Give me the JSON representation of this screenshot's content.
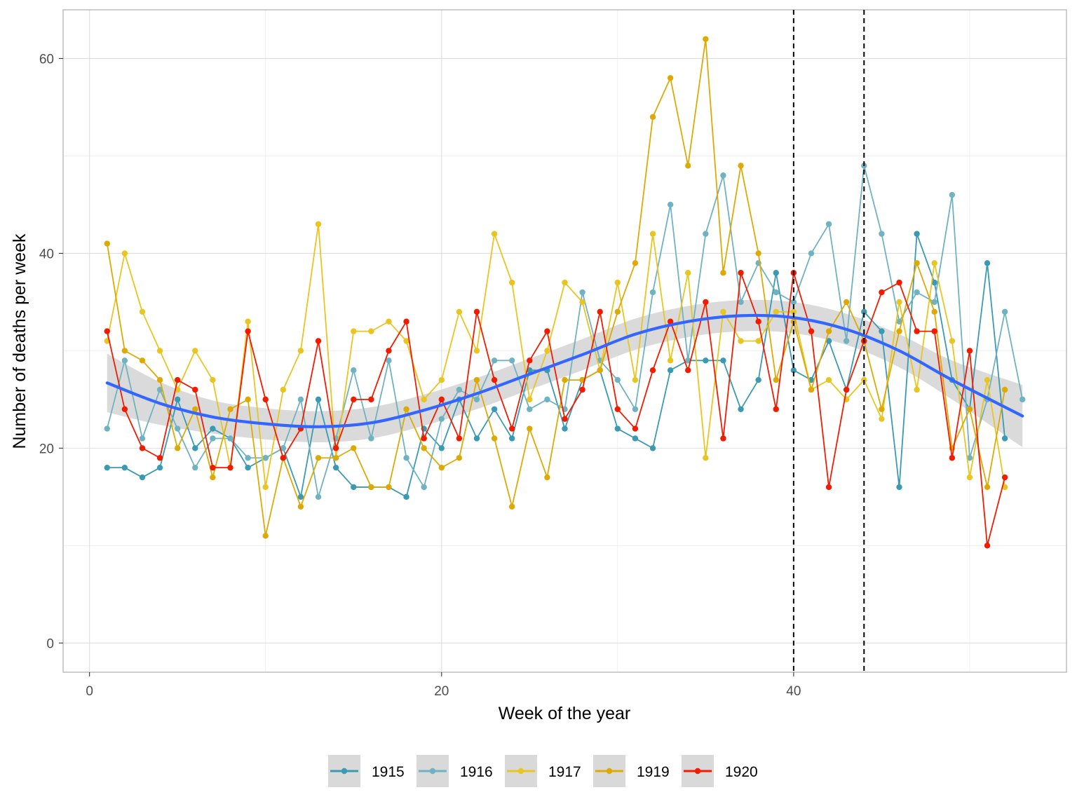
{
  "chart_data": {
    "type": "line",
    "title": "",
    "xlabel": "Week of the year",
    "ylabel": "Number of deaths per week",
    "xlim": [
      -1.5,
      55.5
    ],
    "ylim": [
      -3,
      65
    ],
    "x_ticks": [
      0,
      20,
      40
    ],
    "y_ticks": [
      0,
      20,
      40,
      60
    ],
    "grid": true,
    "legend_position": "bottom",
    "vlines": [
      40,
      44
    ],
    "x": [
      1,
      2,
      3,
      4,
      5,
      6,
      7,
      8,
      9,
      10,
      11,
      12,
      13,
      14,
      15,
      16,
      17,
      18,
      19,
      20,
      21,
      22,
      23,
      24,
      25,
      26,
      27,
      28,
      29,
      30,
      31,
      32,
      33,
      34,
      35,
      36,
      37,
      38,
      39,
      40,
      41,
      42,
      43,
      44,
      45,
      46,
      47,
      48,
      49,
      50,
      51,
      52,
      53
    ],
    "series": [
      {
        "name": "1915",
        "color": "#3A9AB2",
        "values": [
          18,
          18,
          17,
          18,
          25,
          20,
          22,
          21,
          18,
          19,
          20,
          15,
          25,
          18,
          16,
          16,
          16,
          15,
          22,
          20,
          25,
          21,
          24,
          21,
          28,
          28,
          22,
          27,
          28,
          22,
          21,
          20,
          28,
          29,
          29,
          29,
          24,
          27,
          38,
          28,
          27,
          31,
          26,
          34,
          32,
          16,
          42,
          37,
          27,
          24,
          39,
          21,
          null
        ]
      },
      {
        "name": "1916",
        "color": "#6FB2C1",
        "values": [
          22,
          29,
          21,
          26,
          22,
          18,
          21,
          21,
          19,
          19,
          20,
          25,
          15,
          21,
          28,
          21,
          29,
          19,
          16,
          23,
          26,
          25,
          29,
          29,
          24,
          25,
          24,
          36,
          29,
          27,
          24,
          36,
          45,
          29,
          42,
          48,
          35,
          39,
          36,
          35,
          40,
          43,
          31,
          49,
          42,
          33,
          36,
          35,
          46,
          19,
          25,
          34,
          25
        ]
      },
      {
        "name": "1917",
        "color": "#E8C520",
        "values": [
          31,
          40,
          34,
          30,
          26,
          30,
          27,
          18,
          33,
          16,
          26,
          30,
          43,
          19,
          32,
          32,
          33,
          31,
          25,
          27,
          34,
          30,
          42,
          37,
          25,
          30,
          37,
          35,
          28,
          37,
          27,
          42,
          29,
          38,
          19,
          34,
          31,
          31,
          34,
          34,
          26,
          27,
          25,
          27,
          23,
          35,
          26,
          39,
          31,
          17,
          27,
          16,
          null
        ]
      },
      {
        "name": "1919",
        "color": "#DDAA05",
        "values": [
          41,
          30,
          29,
          27,
          20,
          24,
          17,
          24,
          25,
          11,
          19,
          14,
          19,
          19,
          20,
          16,
          16,
          24,
          20,
          18,
          19,
          27,
          21,
          14,
          22,
          17,
          27,
          27,
          28,
          34,
          39,
          54,
          58,
          49,
          62,
          38,
          49,
          40,
          27,
          33,
          26,
          32,
          35,
          31,
          24,
          32,
          39,
          34,
          20,
          24,
          16,
          26,
          null
        ]
      },
      {
        "name": "1920",
        "color": "#F11B00",
        "values": [
          32,
          24,
          20,
          19,
          27,
          26,
          18,
          18,
          32,
          25,
          19,
          22,
          31,
          20,
          25,
          25,
          30,
          33,
          21,
          25,
          21,
          34,
          27,
          22,
          29,
          32,
          23,
          26,
          34,
          24,
          22,
          28,
          33,
          28,
          35,
          21,
          38,
          33,
          24,
          38,
          32,
          16,
          26,
          31,
          36,
          37,
          32,
          32,
          19,
          30,
          10,
          17,
          null
        ]
      }
    ],
    "smooth": {
      "x": [
        1,
        4,
        7,
        10,
        13,
        16,
        19,
        22,
        25,
        28,
        31,
        34,
        37,
        40,
        43,
        46,
        49,
        53
      ],
      "y": [
        26.7,
        24.6,
        23.2,
        22.5,
        22.2,
        22.6,
        23.9,
        25.6,
        27.6,
        29.6,
        31.7,
        33.0,
        33.6,
        33.4,
        32.2,
        30.0,
        27.0,
        23.3
      ],
      "se": [
        3.0,
        2.2,
        1.7,
        1.6,
        1.6,
        1.6,
        1.6,
        1.6,
        1.6,
        1.6,
        1.6,
        1.6,
        1.6,
        1.6,
        1.6,
        1.7,
        2.0,
        3.2
      ],
      "color": "#3366FF",
      "band_color": "#d6d6d6"
    }
  }
}
